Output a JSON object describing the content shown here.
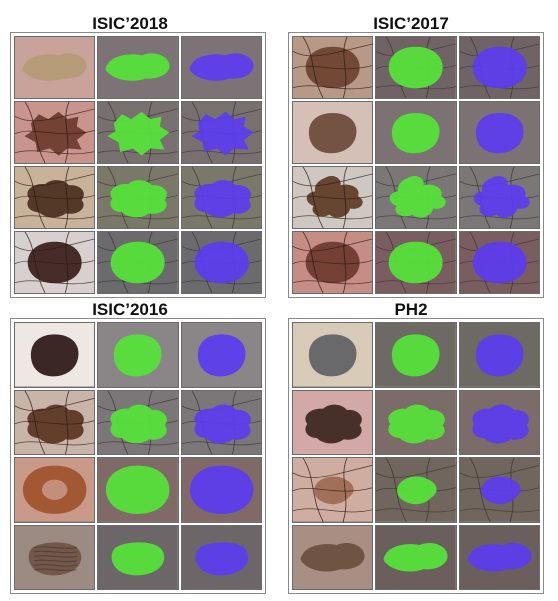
{
  "panels": [
    {
      "title": "ISIC’2018",
      "rows": [
        {
          "skin": "#c9a29a",
          "lesion": "#b49a76",
          "shape": "blob-wide",
          "hair": false,
          "bg": "#7d7377"
        },
        {
          "skin": "#c9948c",
          "lesion": "#6b3b2c",
          "shape": "blob-spiky",
          "hair": true,
          "bg": "#77706f"
        },
        {
          "skin": "#c8b29a",
          "lesion": "#4b2f1e",
          "shape": "blob-irregular",
          "hair": true,
          "bg": "#7a7868"
        },
        {
          "skin": "#d8d0ce",
          "lesion": "#3a1d1a",
          "shape": "blob-round",
          "hair": true,
          "bg": "#6b6a6d"
        }
      ]
    },
    {
      "title": "ISIC’2017",
      "rows": [
        {
          "skin": "#b89886",
          "lesion": "#6a4230",
          "shape": "blob-round",
          "hair": true,
          "bg": "#6f6366"
        },
        {
          "skin": "#d4c0b6",
          "lesion": "#6b4a3b",
          "shape": "blob-oval",
          "hair": false,
          "bg": "#7c7274"
        },
        {
          "skin": "#cfc8c2",
          "lesion": "#5d3a25",
          "shape": "blob-cross",
          "hair": true,
          "bg": "#7b7777"
        },
        {
          "skin": "#c58d85",
          "lesion": "#6c3a2e",
          "shape": "blob-round",
          "hair": true,
          "bg": "#7a5d5f"
        }
      ]
    },
    {
      "title": "ISIC’2016",
      "rows": [
        {
          "skin": "#efe7e2",
          "lesion": "#2b1815",
          "shape": "blob-oval",
          "hair": false,
          "bg": "#8a8688"
        },
        {
          "skin": "#c9b4a8",
          "lesion": "#5a3422",
          "shape": "blob-irregular",
          "hair": true,
          "bg": "#7b7677"
        },
        {
          "skin": "#c9998a",
          "lesion": "#a0522d",
          "shape": "blob-ring",
          "hair": false,
          "bg": "#806a68"
        },
        {
          "skin": "#9c8b82",
          "lesion": "#6f5347",
          "shape": "blob-striped",
          "hair": false,
          "bg": "#6d6669"
        }
      ]
    },
    {
      "title": "PH2",
      "rows": [
        {
          "skin": "#d7cbb8",
          "lesion": "#5f5f63",
          "shape": "blob-oval",
          "hair": false,
          "bg": "#6c6a62"
        },
        {
          "skin": "#d2a9a6",
          "lesion": "#3c2620",
          "shape": "blob-irregular",
          "hair": false,
          "bg": "#7b6b69"
        },
        {
          "skin": "#cfaea1",
          "lesion": "#9e6a53",
          "shape": "blob-small",
          "hair": true,
          "bg": "#71665d"
        },
        {
          "skin": "#a98e83",
          "lesion": "#6a4f3e",
          "shape": "blob-wide",
          "hair": false,
          "bg": "#6a5f5d"
        }
      ]
    }
  ],
  "colors": {
    "green_mask": "#56e03a",
    "blue_mask": "#5b3cf0",
    "panel_border": "#8a8a8a",
    "tile_border": "#6b6b6b"
  }
}
